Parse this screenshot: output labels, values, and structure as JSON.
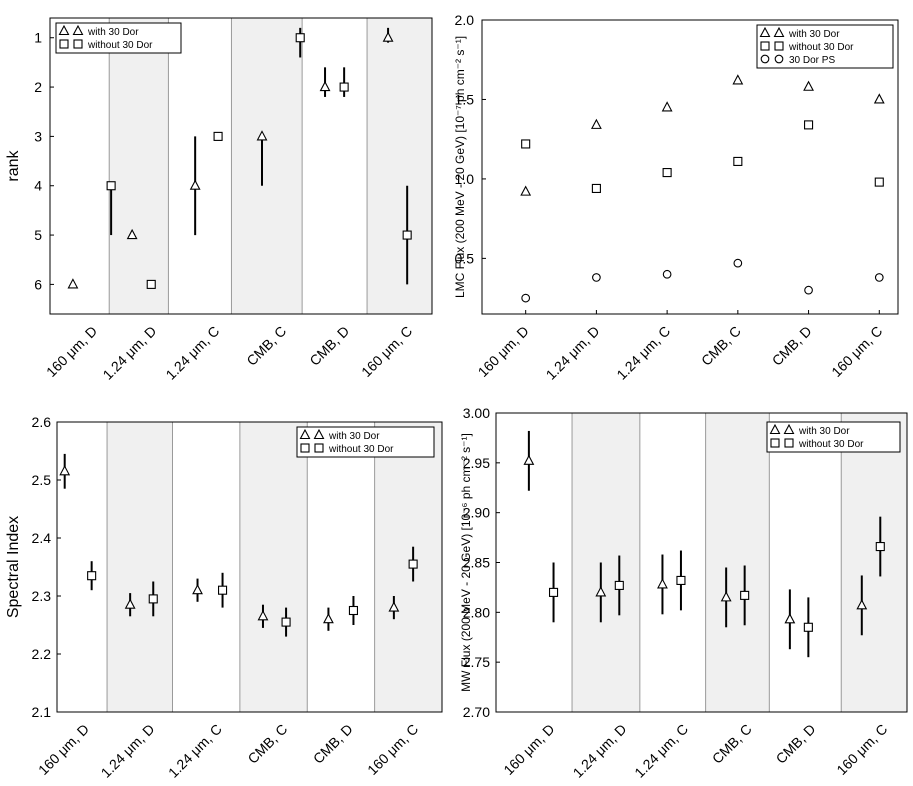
{
  "chart_data": [
    {
      "type": "scatter",
      "ylabel": "rank",
      "ylim": [
        0.6,
        6.6
      ],
      "y_inverted": true,
      "yticks": [
        1,
        2,
        3,
        4,
        5,
        6
      ],
      "categories": [
        "160 μm, D",
        "1.24 μm, D",
        "1.24 μm, C",
        "CMB, C",
        "CMB, D",
        "160 μm, C"
      ],
      "panel_shading": "alternating",
      "legend_position": "top-left",
      "series": [
        {
          "name": "with 30 Dor",
          "marker": "triangle",
          "values": [
            6,
            5,
            4,
            3,
            2,
            1
          ],
          "err_low": [
            null,
            null,
            3,
            3,
            1.6,
            0.8
          ],
          "err_high": [
            null,
            null,
            5,
            4,
            2.2,
            1.1
          ]
        },
        {
          "name": "without 30 Dor",
          "marker": "square",
          "values": [
            4,
            6,
            3,
            1,
            2,
            5
          ],
          "err_low": [
            4,
            null,
            null,
            0.8,
            1.6,
            4
          ],
          "err_high": [
            5,
            null,
            null,
            1.4,
            2.2,
            6
          ]
        }
      ]
    },
    {
      "type": "scatter",
      "ylabel": "LMC Flux (200 MeV - 20 GeV) [10⁻⁷ ph cm⁻² s⁻¹]",
      "ylim": [
        0.15,
        2.0
      ],
      "yticks": [
        0.5,
        1.0,
        1.5,
        2.0
      ],
      "ytick_labels": [
        "0.5",
        "1.0",
        "1.5",
        "2.0"
      ],
      "categories": [
        "160 μm, D",
        "1.24 μm, D",
        "1.24 μm, C",
        "CMB, C",
        "CMB, D",
        "160 μm, C"
      ],
      "legend_position": "top-right",
      "series": [
        {
          "name": "with 30 Dor",
          "marker": "triangle",
          "values": [
            0.92,
            1.34,
            1.45,
            1.62,
            1.58,
            1.5
          ],
          "err": [
            0.015,
            0.015,
            0.015,
            0.015,
            0.015,
            0.015
          ]
        },
        {
          "name": "without 30 Dor",
          "marker": "square",
          "values": [
            1.22,
            0.94,
            1.04,
            1.11,
            1.34,
            0.98
          ],
          "err": [
            0.02,
            0.015,
            0.015,
            0.015,
            0.02,
            0.015
          ]
        },
        {
          "name": "30 Dor PS",
          "marker": "circle",
          "values": [
            0.25,
            0.38,
            0.4,
            0.47,
            0.3,
            0.38
          ],
          "err": [
            0.015,
            0.015,
            0.015,
            0.015,
            0.015,
            0.015
          ]
        }
      ]
    },
    {
      "type": "scatter",
      "ylabel": "Spectral Index",
      "ylim": [
        2.1,
        2.6
      ],
      "yticks": [
        2.1,
        2.2,
        2.3,
        2.4,
        2.5,
        2.6
      ],
      "ytick_labels": [
        "2.1",
        "2.2",
        "2.3",
        "2.4",
        "2.5",
        "2.6"
      ],
      "categories": [
        "160 μm, D",
        "1.24 μm, D",
        "1.24 μm, C",
        "CMB, C",
        "CMB, D",
        "160 μm, C"
      ],
      "panel_shading": "alternating",
      "legend_position": "top-right",
      "series": [
        {
          "name": "with 30 Dor",
          "marker": "triangle",
          "values": [
            2.515,
            2.285,
            2.31,
            2.265,
            2.26,
            2.28
          ],
          "err": [
            0.03,
            0.02,
            0.02,
            0.02,
            0.02,
            0.02
          ]
        },
        {
          "name": "without 30 Dor",
          "marker": "square",
          "values": [
            2.335,
            2.295,
            2.31,
            2.255,
            2.275,
            2.355
          ],
          "err": [
            0.025,
            0.03,
            0.03,
            0.025,
            0.025,
            0.03
          ]
        }
      ]
    },
    {
      "type": "scatter",
      "ylabel": "MW Flux (200 MeV - 20 GeV) [10⁻⁶ ph cm⁻² s⁻¹]",
      "ylim": [
        2.7,
        3.0
      ],
      "yticks": [
        2.7,
        2.75,
        2.8,
        2.85,
        2.9,
        2.95,
        3.0
      ],
      "ytick_labels": [
        "2.70",
        "2.75",
        "2.80",
        "2.85",
        "2.90",
        "2.95",
        "3.00"
      ],
      "categories": [
        "160 μm, D",
        "1.24 μm, D",
        "1.24 μm, C",
        "CMB, C",
        "CMB, D",
        "160 μm, C"
      ],
      "panel_shading": "alternating",
      "legend_position": "top-right",
      "series": [
        {
          "name": "with 30 Dor",
          "marker": "triangle",
          "values": [
            2.952,
            2.82,
            2.828,
            2.815,
            2.793,
            2.807
          ],
          "err": [
            0.03,
            0.03,
            0.03,
            0.03,
            0.03,
            0.03
          ]
        },
        {
          "name": "without 30 Dor",
          "marker": "square",
          "values": [
            2.82,
            2.827,
            2.832,
            2.817,
            2.785,
            2.866
          ],
          "err": [
            0.03,
            0.03,
            0.03,
            0.03,
            0.03,
            0.03
          ]
        }
      ]
    }
  ]
}
